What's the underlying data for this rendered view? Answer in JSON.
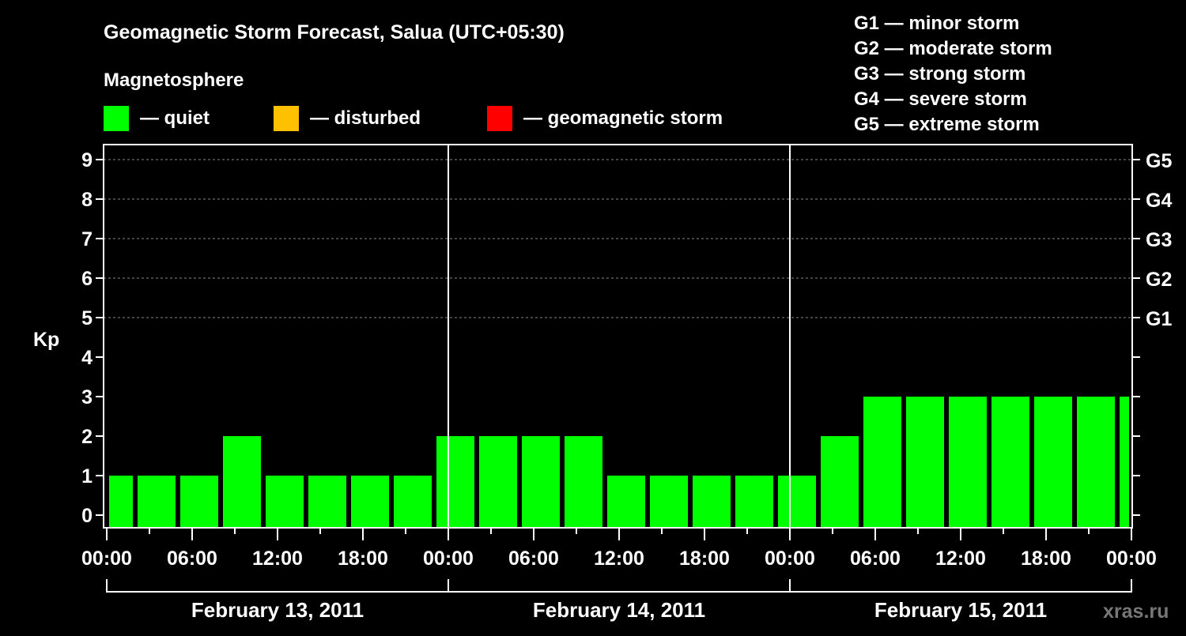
{
  "chart_data": {
    "type": "bar",
    "title": "Geomagnetic Storm Forecast, Salua (UTC+05:30)",
    "legend_title": "Magnetosphere",
    "legend": [
      {
        "label": "— quiet",
        "color": "#00ff00"
      },
      {
        "label": "— disturbed",
        "color": "#ffc000"
      },
      {
        "label": "— geomagnetic storm",
        "color": "#ff0000"
      }
    ],
    "storm_scale": [
      "G1 — minor storm",
      "G2 — moderate storm",
      "G3 — strong storm",
      "G4 — severe storm",
      "G5 — extreme storm"
    ],
    "ylabel": "Kp",
    "ylim": [
      0,
      9
    ],
    "yticks": [
      0,
      1,
      2,
      3,
      4,
      5,
      6,
      7,
      8,
      9
    ],
    "right_ticks": [
      {
        "kp": 5,
        "label": "G1"
      },
      {
        "kp": 6,
        "label": "G2"
      },
      {
        "kp": 7,
        "label": "G3"
      },
      {
        "kp": 8,
        "label": "G4"
      },
      {
        "kp": 9,
        "label": "G5"
      }
    ],
    "x_hours_range": [
      0,
      72
    ],
    "xtick_labels": [
      "00:00",
      "06:00",
      "12:00",
      "18:00",
      "00:00",
      "06:00",
      "12:00",
      "18:00",
      "00:00",
      "06:00",
      "12:00",
      "18:00",
      "00:00"
    ],
    "days": [
      "February 13, 2011",
      "February 14, 2011",
      "February 15, 2011"
    ],
    "bars": [
      {
        "start": 0,
        "end": 2,
        "kp": 1
      },
      {
        "start": 2,
        "end": 5,
        "kp": 1
      },
      {
        "start": 5,
        "end": 8,
        "kp": 1
      },
      {
        "start": 8,
        "end": 11,
        "kp": 2
      },
      {
        "start": 11,
        "end": 14,
        "kp": 1
      },
      {
        "start": 14,
        "end": 17,
        "kp": 1
      },
      {
        "start": 17,
        "end": 20,
        "kp": 1
      },
      {
        "start": 20,
        "end": 23,
        "kp": 1
      },
      {
        "start": 23,
        "end": 26,
        "kp": 2
      },
      {
        "start": 26,
        "end": 29,
        "kp": 2
      },
      {
        "start": 29,
        "end": 32,
        "kp": 2
      },
      {
        "start": 32,
        "end": 35,
        "kp": 2
      },
      {
        "start": 35,
        "end": 38,
        "kp": 1
      },
      {
        "start": 38,
        "end": 41,
        "kp": 1
      },
      {
        "start": 41,
        "end": 44,
        "kp": 1
      },
      {
        "start": 44,
        "end": 47,
        "kp": 1
      },
      {
        "start": 47,
        "end": 50,
        "kp": 1
      },
      {
        "start": 50,
        "end": 53,
        "kp": 2
      },
      {
        "start": 53,
        "end": 56,
        "kp": 3
      },
      {
        "start": 56,
        "end": 59,
        "kp": 3
      },
      {
        "start": 59,
        "end": 62,
        "kp": 3
      },
      {
        "start": 62,
        "end": 65,
        "kp": 3
      },
      {
        "start": 65,
        "end": 68,
        "kp": 3
      },
      {
        "start": 68,
        "end": 71,
        "kp": 3
      },
      {
        "start": 71,
        "end": 72,
        "kp": 3
      }
    ],
    "grid": true,
    "watermark": "xras.ru"
  }
}
